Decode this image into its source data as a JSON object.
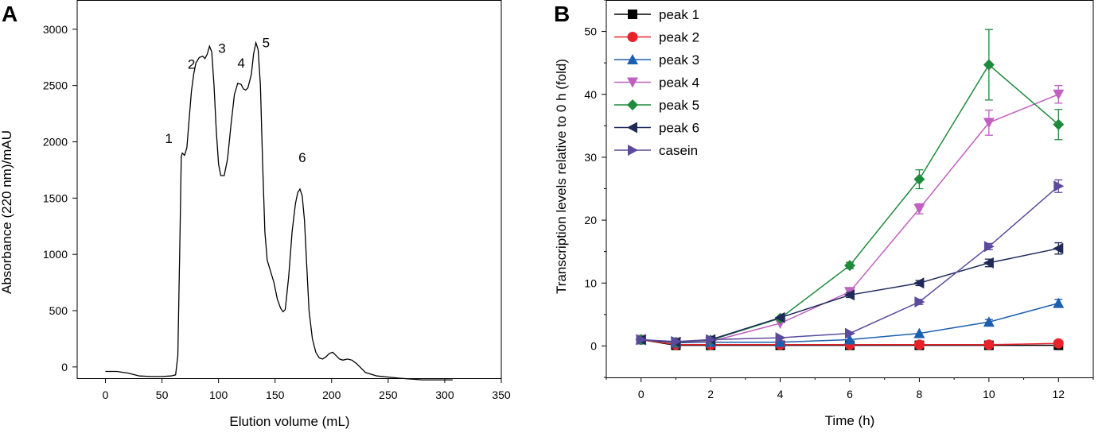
{
  "chart_data": [
    {
      "panel": "A",
      "type": "line",
      "xlabel": "Elution volume (mL)",
      "ylabel": "Absorbance (220 nm)/mAU",
      "xlim": [
        -25,
        350
      ],
      "ylim": [
        -100,
        3260
      ],
      "xticks": [
        0,
        50,
        100,
        150,
        200,
        250,
        300,
        350
      ],
      "yticks": [
        0,
        500,
        1000,
        1500,
        2000,
        2500,
        3000
      ],
      "series": [
        {
          "name": "absorbance",
          "points": [
            [
              0,
              -40
            ],
            [
              10,
              -40
            ],
            [
              20,
              -55
            ],
            [
              30,
              -80
            ],
            [
              40,
              -85
            ],
            [
              50,
              -85
            ],
            [
              58,
              -80
            ],
            [
              62,
              -70
            ],
            [
              64,
              100
            ],
            [
              66,
              1200
            ],
            [
              67,
              1870
            ],
            [
              68,
              1900
            ],
            [
              70,
              1880
            ],
            [
              72,
              1950
            ],
            [
              74,
              2200
            ],
            [
              76,
              2450
            ],
            [
              78,
              2600
            ],
            [
              80,
              2700
            ],
            [
              83,
              2750
            ],
            [
              86,
              2760
            ],
            [
              88,
              2740
            ],
            [
              90,
              2780
            ],
            [
              92,
              2850
            ],
            [
              94,
              2800
            ],
            [
              96,
              2500
            ],
            [
              98,
              2100
            ],
            [
              100,
              1800
            ],
            [
              102,
              1700
            ],
            [
              105,
              1700
            ],
            [
              108,
              1850
            ],
            [
              111,
              2150
            ],
            [
              114,
              2420
            ],
            [
              117,
              2520
            ],
            [
              120,
              2510
            ],
            [
              122,
              2470
            ],
            [
              124,
              2460
            ],
            [
              126,
              2480
            ],
            [
              129,
              2600
            ],
            [
              131,
              2780
            ],
            [
              133,
              2880
            ],
            [
              135,
              2820
            ],
            [
              137,
              2500
            ],
            [
              139,
              1800
            ],
            [
              141,
              1200
            ],
            [
              143,
              950
            ],
            [
              146,
              850
            ],
            [
              149,
              750
            ],
            [
              152,
              600
            ],
            [
              155,
              520
            ],
            [
              157,
              490
            ],
            [
              159,
              510
            ],
            [
              162,
              800
            ],
            [
              165,
              1200
            ],
            [
              168,
              1450
            ],
            [
              170,
              1550
            ],
            [
              172,
              1580
            ],
            [
              174,
              1520
            ],
            [
              176,
              1300
            ],
            [
              178,
              900
            ],
            [
              180,
              500
            ],
            [
              183,
              250
            ],
            [
              186,
              130
            ],
            [
              189,
              80
            ],
            [
              192,
              70
            ],
            [
              195,
              90
            ],
            [
              198,
              120
            ],
            [
              201,
              130
            ],
            [
              204,
              100
            ],
            [
              207,
              70
            ],
            [
              210,
              60
            ],
            [
              214,
              70
            ],
            [
              218,
              60
            ],
            [
              222,
              30
            ],
            [
              226,
              -10
            ],
            [
              230,
              -50
            ],
            [
              240,
              -80
            ],
            [
              250,
              -90
            ],
            [
              260,
              -100
            ],
            [
              280,
              -115
            ],
            [
              300,
              -115
            ],
            [
              307,
              -115
            ]
          ]
        }
      ],
      "annotations": [
        {
          "text": "1",
          "x": 56,
          "y": 1990
        },
        {
          "text": "2",
          "x": 76,
          "y": 2650
        },
        {
          "text": "3",
          "x": 103,
          "y": 2790
        },
        {
          "text": "4",
          "x": 120,
          "y": 2660
        },
        {
          "text": "5",
          "x": 142,
          "y": 2840
        },
        {
          "text": "6",
          "x": 174,
          "y": 1820
        }
      ]
    },
    {
      "panel": "B",
      "type": "line",
      "xlabel": "Time (h)",
      "ylabel": "Transcription levels relative to 0 h (fold)",
      "xlim": [
        -1,
        13
      ],
      "ylim": [
        -5,
        55
      ],
      "xticks": [
        0,
        2,
        4,
        6,
        8,
        10,
        12
      ],
      "yticks": [
        0,
        10,
        20,
        30,
        40,
        50
      ],
      "x": [
        0,
        1,
        2,
        4,
        6,
        8,
        10,
        12
      ],
      "legend_position": "top-left",
      "series": [
        {
          "name": "peak 1",
          "marker": "square",
          "color": "#000000",
          "values": [
            1.0,
            0.1,
            0.1,
            0.1,
            0.1,
            0.1,
            0.1,
            0.1
          ],
          "errors": [
            0.2,
            0.1,
            0.1,
            0.1,
            0.1,
            0.1,
            0.1,
            0.1
          ]
        },
        {
          "name": "peak 2",
          "marker": "circle",
          "color": "#e8222a",
          "values": [
            1.0,
            0.2,
            0.2,
            0.2,
            0.2,
            0.2,
            0.2,
            0.4
          ],
          "errors": [
            0.2,
            0.1,
            0.1,
            0.1,
            0.1,
            0.1,
            0.1,
            0.2
          ]
        },
        {
          "name": "peak 3",
          "marker": "triangle-up",
          "color": "#1b5fb0",
          "values": [
            1.0,
            0.5,
            0.6,
            0.6,
            1.0,
            2.0,
            3.8,
            6.8
          ],
          "errors": [
            0.2,
            0.1,
            0.1,
            0.1,
            0.2,
            0.3,
            0.4,
            0.6
          ]
        },
        {
          "name": "peak 4",
          "marker": "triangle-down",
          "color": "#c060c0",
          "values": [
            1.0,
            0.6,
            0.7,
            3.6,
            8.6,
            21.8,
            35.5,
            40.0
          ],
          "errors": [
            0.2,
            0.1,
            0.1,
            0.3,
            0.5,
            0.8,
            2.0,
            1.4
          ]
        },
        {
          "name": "peak 5",
          "marker": "diamond",
          "color": "#1e8a3c",
          "values": [
            1.0,
            0.6,
            0.9,
            4.4,
            12.8,
            26.5,
            44.7,
            35.2
          ],
          "errors": [
            0.2,
            0.1,
            0.1,
            0.3,
            0.5,
            1.5,
            5.6,
            2.4
          ]
        },
        {
          "name": "peak 6",
          "marker": "triangle-left",
          "color": "#1f2a5a",
          "values": [
            1.0,
            0.6,
            1.0,
            4.5,
            8.1,
            10.0,
            13.2,
            15.5
          ],
          "errors": [
            0.2,
            0.1,
            0.1,
            0.3,
            0.4,
            0.4,
            0.6,
            0.9
          ]
        },
        {
          "name": "casein",
          "marker": "triangle-right",
          "color": "#5c4a9e",
          "values": [
            1.0,
            0.7,
            1.0,
            1.3,
            2.0,
            7.0,
            15.8,
            25.4
          ],
          "errors": [
            0.2,
            0.1,
            0.1,
            0.2,
            0.2,
            0.4,
            0.5,
            1.0
          ]
        }
      ]
    }
  ]
}
